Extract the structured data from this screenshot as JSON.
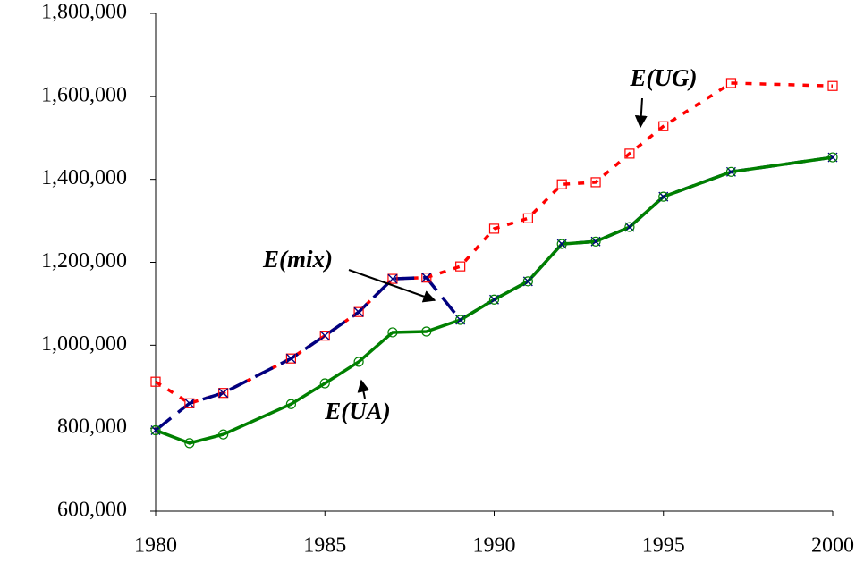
{
  "chart_data": {
    "type": "line",
    "x": [
      1980,
      1981,
      1982,
      1984,
      1985,
      1986,
      1987,
      1988,
      1989,
      1990,
      1991,
      1992,
      1993,
      1994,
      1995,
      1997,
      2000
    ],
    "series": [
      {
        "name": "E(UG)",
        "color": "#ff0000",
        "line_style": "dotted",
        "marker": "square",
        "values": [
          912000,
          860000,
          885000,
          968000,
          1023000,
          1080000,
          1160000,
          1163000,
          1190000,
          1281000,
          1306000,
          1388000,
          1393000,
          1462000,
          1528000,
          1632000,
          1625000
        ]
      },
      {
        "name": "E(mix)",
        "color": "#000080",
        "line_style": "dashed",
        "marker": "x",
        "values": [
          795000,
          860000,
          885000,
          968000,
          1023000,
          1080000,
          1160000,
          1163000,
          1061000,
          1110000,
          1154000,
          1244000,
          1250000,
          1285000,
          1358000,
          1418000,
          1453000
        ]
      },
      {
        "name": "E(UA)",
        "color": "#008000",
        "line_style": "solid",
        "marker": "circle",
        "values": [
          795000,
          764000,
          785000,
          858000,
          908000,
          960000,
          1031000,
          1033000,
          1061000,
          1110000,
          1154000,
          1244000,
          1250000,
          1285000,
          1358000,
          1418000,
          1453000
        ]
      }
    ],
    "xlim": [
      1980,
      2000
    ],
    "xticks": [
      1980,
      1985,
      1990,
      1995,
      2000
    ],
    "ylim": [
      600000,
      1800000
    ],
    "yticks": [
      {
        "value": 600000,
        "label": "600,000"
      },
      {
        "value": 800000,
        "label": "800,000"
      },
      {
        "value": 1000000,
        "label": "1,000,000"
      },
      {
        "value": 1200000,
        "label": "1,200,000"
      },
      {
        "value": 1400000,
        "label": "1,400,000"
      },
      {
        "value": 1600000,
        "label": "1,600,000"
      },
      {
        "value": 1800000,
        "label": "1,800,000"
      }
    ],
    "grid": false
  }
}
